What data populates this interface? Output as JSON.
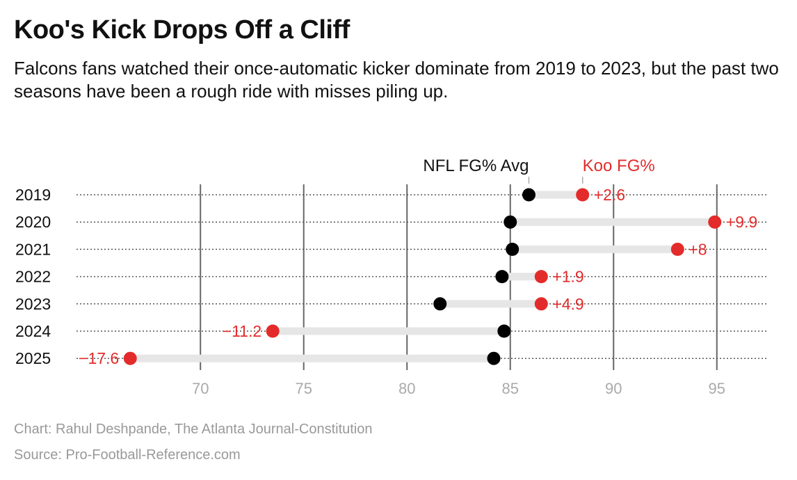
{
  "title": "Koo's Kick Drops Off a Cliff",
  "subtitle": "Falcons fans watched their once-automatic kicker dominate from 2019 to 2023, but the past two seasons have been a rough ride with misses piling up.",
  "footer": {
    "credit": "Chart: Rahul Deshpande, The Atlanta Journal-Constitution",
    "source": "Source: Pro-Football-Reference.com"
  },
  "chart_data": {
    "type": "dot-plot",
    "categories": [
      "2019",
      "2020",
      "2021",
      "2022",
      "2023",
      "2024",
      "2025"
    ],
    "series": [
      {
        "name": "NFL FG% Avg",
        "color": "#000000",
        "values": [
          85.9,
          85.0,
          85.1,
          84.6,
          81.6,
          84.7,
          84.2
        ]
      },
      {
        "name": "Koo FG%",
        "color": "#e32b2b",
        "values": [
          88.5,
          94.9,
          93.1,
          86.5,
          86.5,
          73.5,
          66.6
        ]
      }
    ],
    "diff_labels": [
      "+2.6",
      "+9.9",
      "+8",
      "+1.9",
      "+4.9",
      "−11.2",
      "−17.6"
    ],
    "x_ticks": [
      70,
      75,
      80,
      85,
      90,
      95
    ],
    "xlim": [
      64,
      97.5
    ],
    "grid": true,
    "connector_color": "#e6e6e6"
  }
}
